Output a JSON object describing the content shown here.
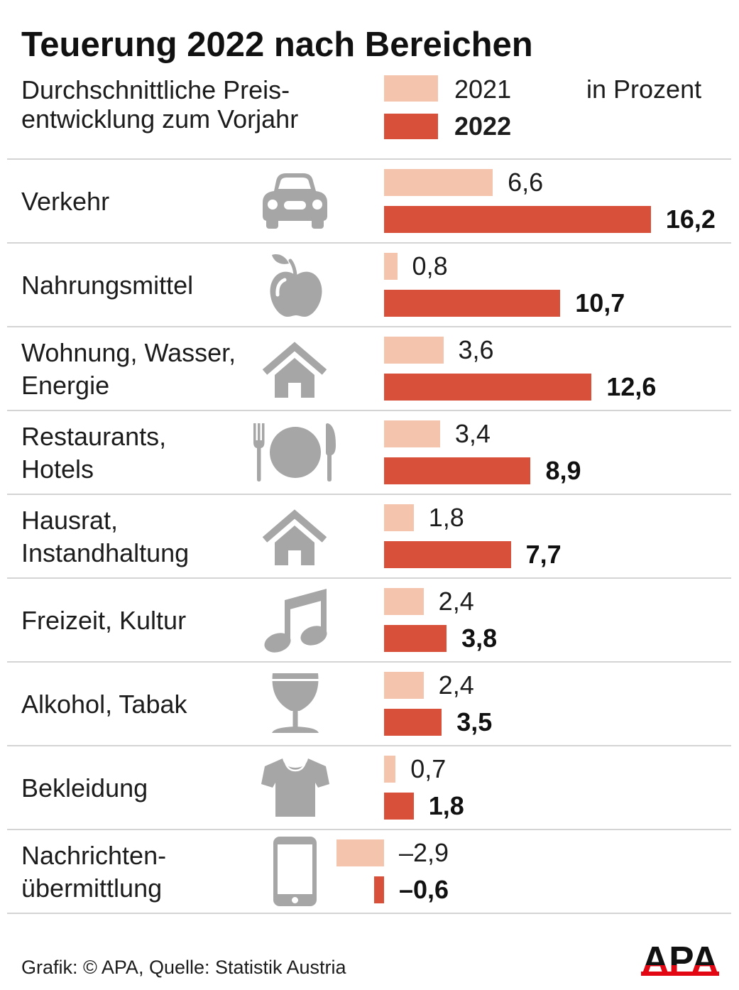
{
  "chart_data": {
    "type": "bar",
    "orientation": "horizontal",
    "title": "Teuerung 2022 nach Bereichen",
    "subtitle": [
      "Durchschnittliche Preis-",
      "entwicklung zum Vorjahr"
    ],
    "unit_label": "in Prozent",
    "legend_position": "top-right",
    "grid": false,
    "categories": [
      "Verkehr",
      "Nahrungsmittel",
      "Wohnung, Wasser,\nEnergie",
      "Restaurants,\nHotels",
      "Hausrat,\nInstandhaltung",
      "Freizeit, Kultur",
      "Alkohol, Tabak",
      "Bekleidung",
      "Nachrichten-\nübermittlung"
    ],
    "icons": [
      "car-icon",
      "apple-icon",
      "house-icon",
      "cutlery-icon",
      "house-icon",
      "music-notes-icon",
      "wine-glass-icon",
      "t-shirt-icon",
      "smartphone-icon"
    ],
    "series": [
      {
        "name": "2021",
        "color": "#f5c4ad",
        "values": [
          6.6,
          0.8,
          3.6,
          3.4,
          1.8,
          2.4,
          2.4,
          0.7,
          -2.9
        ],
        "labels": [
          "6,6",
          "0,8",
          "3,6",
          "3,4",
          "1,8",
          "2,4",
          "2,4",
          "0,7",
          "–2,9"
        ]
      },
      {
        "name": "2022",
        "color": "#d9503a",
        "values": [
          16.2,
          10.7,
          12.6,
          8.9,
          7.7,
          3.8,
          3.5,
          1.8,
          -0.6
        ],
        "labels": [
          "16,2",
          "10,7",
          "12,6",
          "8,9",
          "7,7",
          "3,8",
          "3,5",
          "1,8",
          "–0,6"
        ]
      }
    ]
  },
  "footer": {
    "credit": "Grafik: © APA, Quelle: Statistik Austria",
    "logo_text": "APA"
  },
  "colors": {
    "icon": "#a6a6a6",
    "separator": "#d4d4d4",
    "logo_red": "#e30613"
  }
}
